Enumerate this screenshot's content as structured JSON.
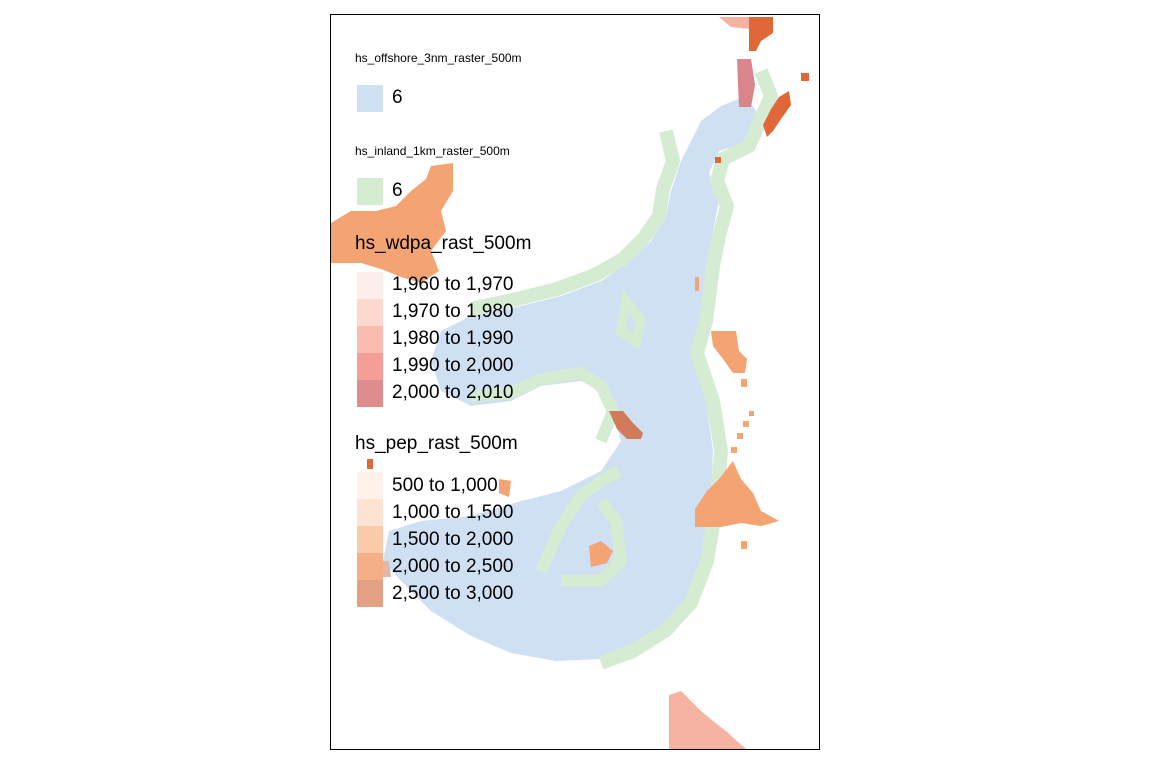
{
  "colors": {
    "offshore": "#cfe0f3",
    "inland": "#d6ecd2",
    "pep_orange": "#f4a372",
    "pep_dark": "#e06838",
    "wdpa_pink": "#f7b3a1",
    "wdpa_mauve": "#d9868a",
    "overlap_brown": "#d07a5a"
  },
  "legend": {
    "offshore": {
      "title": "hs_offshore_3nm_raster_500m",
      "items": [
        {
          "label": "6",
          "color": "#cfe0f3"
        }
      ]
    },
    "inland": {
      "title": "hs_inland_1km_raster_500m",
      "items": [
        {
          "label": "6",
          "color": "#d6ecd2"
        }
      ]
    },
    "wdpa": {
      "title": "hs_wdpa_rast_500m",
      "items": [
        {
          "label": "1,960 to 1,970",
          "color": "#fdeee9"
        },
        {
          "label": "1,970 to 1,980",
          "color": "#fcd8ce"
        },
        {
          "label": "1,980 to 1,990",
          "color": "#f9bcae"
        },
        {
          "label": "1,990 to 2,000",
          "color": "#f39e96"
        },
        {
          "label": "2,000 to 2,010",
          "color": "#df8c8f"
        }
      ]
    },
    "pep": {
      "title": "hs_pep_rast_500m",
      "items": [
        {
          "label": "500 to 1,000",
          "color": "#fef2ea"
        },
        {
          "label": "1,000 to 1,500",
          "color": "#fde3d2"
        },
        {
          "label": "1,500 to 2,000",
          "color": "#fcccaa"
        },
        {
          "label": "2,000 to 2,500",
          "color": "#f5af86"
        },
        {
          "label": "2,500 to 3,000",
          "color": "#e3a183"
        }
      ]
    }
  }
}
